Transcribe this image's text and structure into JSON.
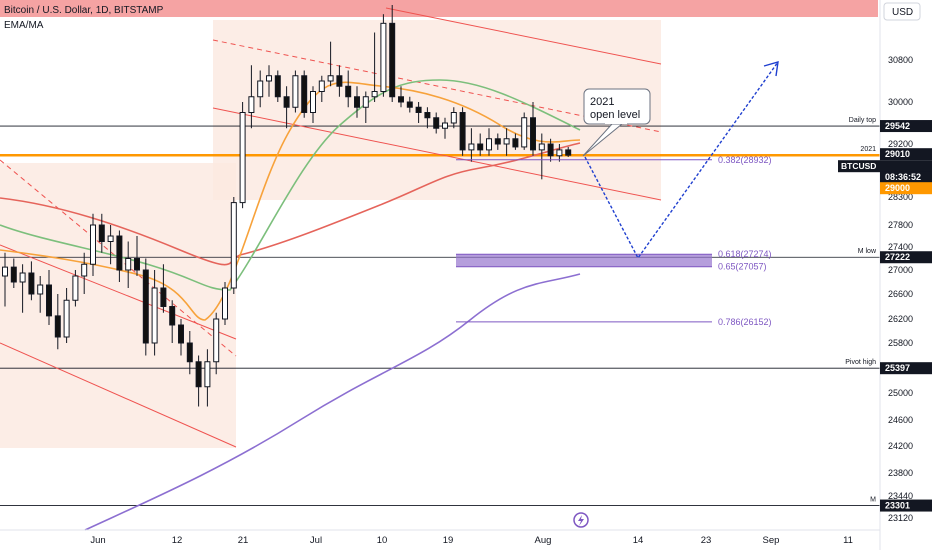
{
  "header": {
    "symbol_title": "Bitcoin / U.S. Dollar, 1D, BITSTAMP",
    "indicator": "EMA/MA",
    "currency_button": "USD"
  },
  "colors": {
    "background": "#ffffff",
    "header_band": "#f5a3a3",
    "price_zone_fill": "#fbe9e0",
    "channel_red": "#ef5350",
    "orange_level": "#ff9800",
    "ema_orange": "#f7a23b",
    "ema_green": "#7cbf7c",
    "ma_red": "#e5645b",
    "ma_purple": "#8c6fd1",
    "projection_blue": "#1f3fcf",
    "fib_purple": "#7e57c2",
    "candle_fill": "#111111",
    "price_tag_black": "#131722",
    "price_tag_orange": "#ff9800"
  },
  "chart_data": {
    "type": "candlestick",
    "title": "Bitcoin / U.S. Dollar, 1D, BITSTAMP",
    "y_axis": {
      "ticks": [
        "30800",
        "30000",
        "29200",
        "28300",
        "27800",
        "27400",
        "27000",
        "26600",
        "26200",
        "25800",
        "25000",
        "24600",
        "24200",
        "23800",
        "23440",
        "23120"
      ]
    },
    "x_axis": {
      "ticks": [
        "Jun",
        "12",
        "21",
        "Jul",
        "10",
        "19",
        "Aug",
        "14",
        "23",
        "Sep",
        "11"
      ]
    },
    "horizontal_levels": [
      {
        "label": "Daily top",
        "value": 29542
      },
      {
        "label": "2021",
        "value": 29010
      },
      {
        "label": "M low",
        "value": 27222
      },
      {
        "label": "Pivot high",
        "value": 25397
      },
      {
        "label": "M",
        "value": 23301
      }
    ],
    "price_tags": [
      {
        "value": "29542",
        "style": "black"
      },
      {
        "value": "29010",
        "style": "black"
      },
      {
        "value": "BTCUSD",
        "style": "black"
      },
      {
        "value": "08:36:52",
        "style": "black"
      },
      {
        "value": "29000",
        "style": "orange"
      },
      {
        "value": "27222",
        "style": "black"
      },
      {
        "value": "25397",
        "style": "black"
      },
      {
        "value": "23301",
        "style": "black"
      }
    ],
    "fib_levels": [
      {
        "label": "0.382(28932)",
        "ratio": 0.382,
        "value": 28932
      },
      {
        "label": "0.618(27274)",
        "ratio": 0.618,
        "value": 27274
      },
      {
        "label": "0.65(27057)",
        "ratio": 0.65,
        "value": 27057
      },
      {
        "label": "0.786(26152)",
        "ratio": 0.786,
        "value": 26152
      }
    ],
    "annotations": [
      "2021 open level"
    ],
    "candles": [
      {
        "o": 26900,
        "h": 27300,
        "l": 26400,
        "c": 27050
      },
      {
        "o": 27050,
        "h": 27200,
        "l": 26700,
        "c": 26800
      },
      {
        "o": 26800,
        "h": 27100,
        "l": 26300,
        "c": 26950
      },
      {
        "o": 26950,
        "h": 27150,
        "l": 26500,
        "c": 26600
      },
      {
        "o": 26600,
        "h": 26900,
        "l": 26300,
        "c": 26750
      },
      {
        "o": 26750,
        "h": 27000,
        "l": 26100,
        "c": 26250
      },
      {
        "o": 26250,
        "h": 26600,
        "l": 25700,
        "c": 25900
      },
      {
        "o": 25900,
        "h": 26700,
        "l": 25800,
        "c": 26500
      },
      {
        "o": 26500,
        "h": 27000,
        "l": 26400,
        "c": 26900
      },
      {
        "o": 26900,
        "h": 27300,
        "l": 26600,
        "c": 27100
      },
      {
        "o": 27100,
        "h": 28000,
        "l": 26900,
        "c": 27800
      },
      {
        "o": 27800,
        "h": 28000,
        "l": 27300,
        "c": 27500
      },
      {
        "o": 27500,
        "h": 27800,
        "l": 27100,
        "c": 27600
      },
      {
        "o": 27600,
        "h": 27700,
        "l": 26800,
        "c": 27000
      },
      {
        "o": 27000,
        "h": 27500,
        "l": 26700,
        "c": 27200
      },
      {
        "o": 27200,
        "h": 27600,
        "l": 26900,
        "c": 27000
      },
      {
        "o": 27000,
        "h": 27200,
        "l": 25600,
        "c": 25800
      },
      {
        "o": 25800,
        "h": 27000,
        "l": 25600,
        "c": 26700
      },
      {
        "o": 26700,
        "h": 27100,
        "l": 26300,
        "c": 26400
      },
      {
        "o": 26400,
        "h": 26500,
        "l": 25800,
        "c": 26100
      },
      {
        "o": 26100,
        "h": 26200,
        "l": 25600,
        "c": 25800
      },
      {
        "o": 25800,
        "h": 26000,
        "l": 25300,
        "c": 25500
      },
      {
        "o": 25500,
        "h": 25600,
        "l": 24800,
        "c": 25100
      },
      {
        "o": 25100,
        "h": 25700,
        "l": 24800,
        "c": 25500
      },
      {
        "o": 25500,
        "h": 26300,
        "l": 25300,
        "c": 26200
      },
      {
        "o": 26200,
        "h": 26800,
        "l": 26100,
        "c": 26700
      },
      {
        "o": 26700,
        "h": 28300,
        "l": 26600,
        "c": 28200
      },
      {
        "o": 28200,
        "h": 30000,
        "l": 28100,
        "c": 29800
      },
      {
        "o": 29800,
        "h": 30700,
        "l": 29500,
        "c": 30100
      },
      {
        "o": 30100,
        "h": 30600,
        "l": 29900,
        "c": 30400
      },
      {
        "o": 30400,
        "h": 30700,
        "l": 30100,
        "c": 30500
      },
      {
        "o": 30500,
        "h": 30600,
        "l": 30000,
        "c": 30100
      },
      {
        "o": 30100,
        "h": 30300,
        "l": 29500,
        "c": 29900
      },
      {
        "o": 29900,
        "h": 30600,
        "l": 29800,
        "c": 30500
      },
      {
        "o": 30500,
        "h": 30600,
        "l": 29700,
        "c": 29800
      },
      {
        "o": 29800,
        "h": 30300,
        "l": 29600,
        "c": 30200
      },
      {
        "o": 30200,
        "h": 30500,
        "l": 30000,
        "c": 30400
      },
      {
        "o": 30400,
        "h": 31000,
        "l": 30300,
        "c": 30500
      },
      {
        "o": 30500,
        "h": 30700,
        "l": 30100,
        "c": 30300
      },
      {
        "o": 30300,
        "h": 30600,
        "l": 29900,
        "c": 30100
      },
      {
        "o": 30100,
        "h": 30300,
        "l": 29700,
        "c": 29900
      },
      {
        "o": 29900,
        "h": 30200,
        "l": 29600,
        "c": 30100
      },
      {
        "o": 30100,
        "h": 31100,
        "l": 30000,
        "c": 30200
      },
      {
        "o": 30200,
        "h": 31300,
        "l": 30100,
        "c": 31200
      },
      {
        "o": 31200,
        "h": 31500,
        "l": 30000,
        "c": 30100
      },
      {
        "o": 30100,
        "h": 30300,
        "l": 29900,
        "c": 30000
      },
      {
        "o": 30000,
        "h": 30100,
        "l": 29800,
        "c": 29900
      },
      {
        "o": 29900,
        "h": 30000,
        "l": 29600,
        "c": 29800
      },
      {
        "o": 29800,
        "h": 29900,
        "l": 29500,
        "c": 29700
      },
      {
        "o": 29700,
        "h": 29800,
        "l": 29400,
        "c": 29500
      },
      {
        "o": 29500,
        "h": 29700,
        "l": 29300,
        "c": 29600
      },
      {
        "o": 29600,
        "h": 29900,
        "l": 29500,
        "c": 29800
      },
      {
        "o": 29800,
        "h": 29900,
        "l": 29000,
        "c": 29100
      },
      {
        "o": 29100,
        "h": 29500,
        "l": 28900,
        "c": 29200
      },
      {
        "o": 29200,
        "h": 29400,
        "l": 29000,
        "c": 29100
      },
      {
        "o": 29100,
        "h": 29500,
        "l": 29000,
        "c": 29300
      },
      {
        "o": 29300,
        "h": 29400,
        "l": 29100,
        "c": 29200
      },
      {
        "o": 29200,
        "h": 29500,
        "l": 29000,
        "c": 29300
      },
      {
        "o": 29300,
        "h": 29400,
        "l": 29100,
        "c": 29150
      },
      {
        "o": 29150,
        "h": 29800,
        "l": 29100,
        "c": 29700
      },
      {
        "o": 29700,
        "h": 30000,
        "l": 29000,
        "c": 29100
      },
      {
        "o": 29100,
        "h": 29400,
        "l": 28600,
        "c": 29200
      },
      {
        "o": 29200,
        "h": 29300,
        "l": 28900,
        "c": 29000
      },
      {
        "o": 29000,
        "h": 29200,
        "l": 28900,
        "c": 29100
      },
      {
        "o": 29100,
        "h": 29150,
        "l": 28980,
        "c": 29010
      }
    ]
  }
}
